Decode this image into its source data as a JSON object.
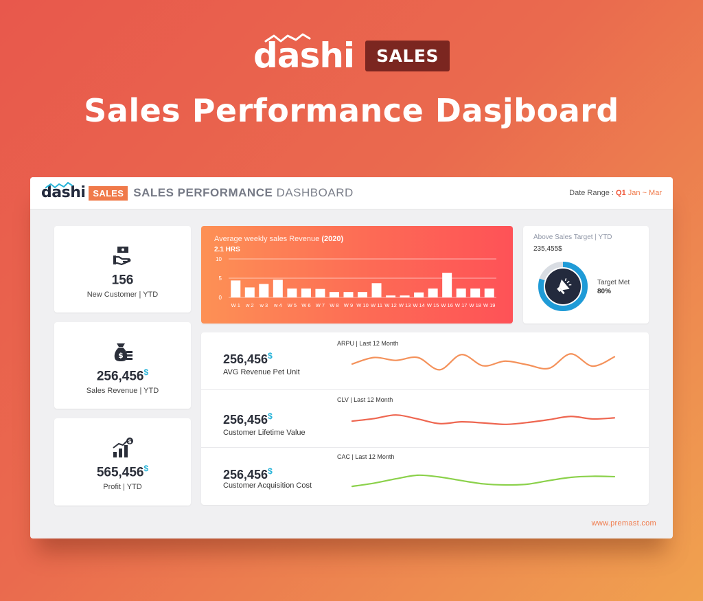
{
  "hero": {
    "logo_text": "dashi",
    "badge": "SALES",
    "title": "Sales Performance Dasjboard"
  },
  "header": {
    "logo_text": "dashi",
    "badge": "SALES",
    "title_bold": "SALES PERFORMANCE",
    "title_light": "DASHBOARD",
    "date_label": "Date Range :",
    "quarter": "Q1",
    "months": "Jan ~ Mar"
  },
  "kpis": [
    {
      "icon": "money-hand-icon",
      "value": "156",
      "suffix": "",
      "label": "New Customer | YTD"
    },
    {
      "icon": "money-bag-icon",
      "value": "256,456",
      "suffix": "$",
      "label": "Sales Revenue | YTD"
    },
    {
      "icon": "growth-chart-icon",
      "value": "565,456",
      "suffix": "$",
      "label": "Profit | YTD"
    }
  ],
  "revenue": {
    "title_prefix": "Average weekly sales Revenue",
    "title_year": "(2020)",
    "subtitle": "2.1 HRS"
  },
  "target": {
    "title": "Above Sales Target",
    "title_suffix": "| YTD",
    "value": "235,455$",
    "met_label": "Target Met",
    "met_pct": "80%",
    "met_fraction": 0.8,
    "icon": "megaphone-icon"
  },
  "metrics": [
    {
      "value": "256,456",
      "suffix": "$",
      "label": "AVG Revenue Pet Unit",
      "caption": "ARPU | Last 12 Month",
      "color": "#f4915a"
    },
    {
      "value": "256,456",
      "suffix": "$",
      "label": "Customer Lifetime Value",
      "caption": "CLV | Last 12 Month",
      "color": "#ee6650"
    },
    {
      "value": "256,456",
      "suffix": "$",
      "label": "Customer Acquisition Cost",
      "caption": "CAC | Last 12 Month",
      "color": "#8bd14b"
    }
  ],
  "footer": {
    "url": "www.premast.com"
  },
  "colors": {
    "accent": "#f07a4a",
    "dollar": "#27b3d8",
    "donut_ring": "#1f9bd7",
    "donut_center": "#232a3d"
  },
  "chart_data": [
    {
      "type": "bar",
      "ylim": [
        0,
        10
      ],
      "yticks": [
        "10",
        "5",
        "0"
      ],
      "categories": [
        "W 1",
        "w 2",
        "w 3",
        "w 4",
        "W 5",
        "W 6",
        "W 7",
        "W 8",
        "W 9",
        "W 10",
        "W 11",
        "W 12",
        "W 13",
        "W 14",
        "W 15",
        "W 16",
        "W 17",
        "W 18",
        "W 19"
      ],
      "values": [
        4.4,
        2.6,
        3.5,
        4.6,
        2.3,
        2.3,
        2.2,
        1.4,
        1.4,
        1.4,
        3.7,
        0.5,
        0.5,
        1.3,
        2.3,
        6.4,
        2.3,
        2.3,
        2.3
      ]
    },
    {
      "type": "line",
      "caption": "ARPU | Last 12 Month",
      "values": [
        4.2,
        6.0,
        5.2,
        6.0,
        2.6,
        6.8,
        3.7,
        5.0,
        4.0,
        3.0,
        7.0,
        3.6,
        6.2
      ]
    },
    {
      "type": "line",
      "caption": "CLV | Last 12 Month",
      "values": [
        3.6,
        4.3,
        5.3,
        4.2,
        2.9,
        3.4,
        3.1,
        2.7,
        3.2,
        4.0,
        4.9,
        4.2,
        4.5
      ]
    },
    {
      "type": "line",
      "caption": "CAC | Last 12 Month",
      "values": [
        1.5,
        2.4,
        3.6,
        4.6,
        4.1,
        3.1,
        2.2,
        1.9,
        2.1,
        3.1,
        4.0,
        4.3,
        4.2
      ]
    }
  ]
}
